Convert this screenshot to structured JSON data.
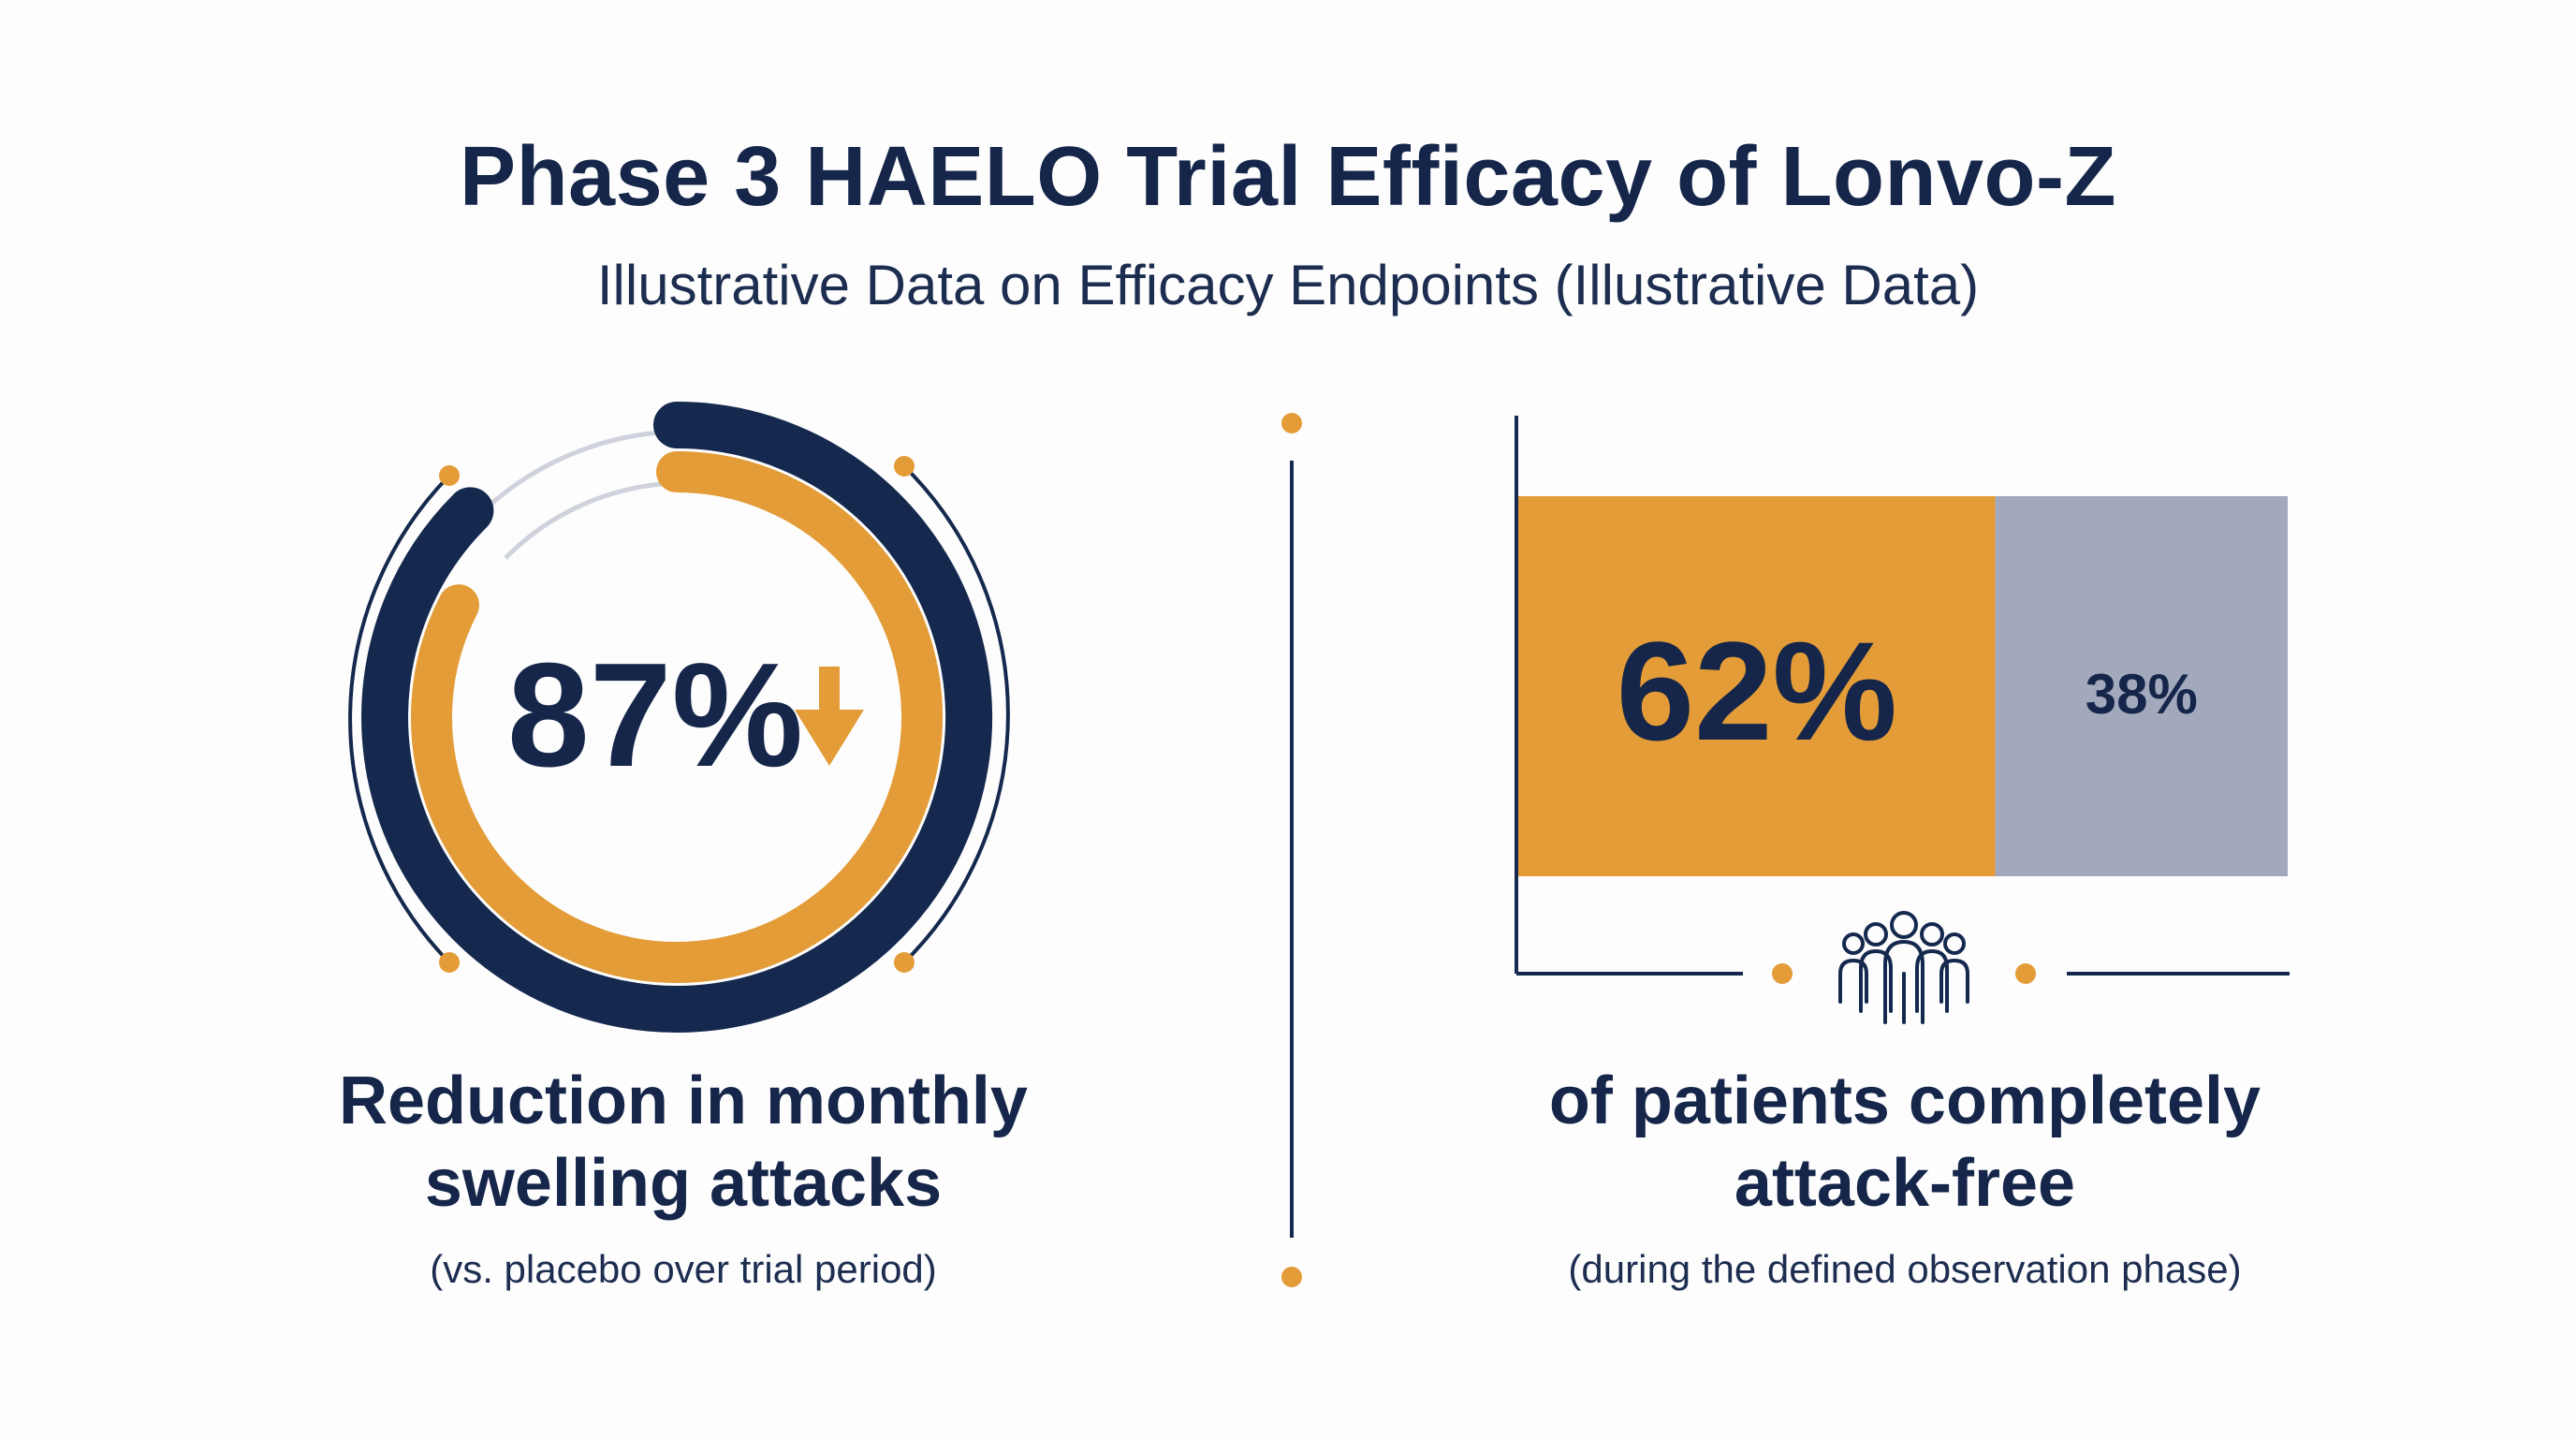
{
  "title": "Phase 3 HAELO Trial Efficacy of Lonvo-Z",
  "subtitle": "Illustrative Data on Efficacy Endpoints (Illustrative Data)",
  "colors": {
    "navy": "#15294f",
    "orange": "#e39c37",
    "gray": "#a3a9bd",
    "thin_gray": "#cfd2dc"
  },
  "chart_data": [
    {
      "type": "donut",
      "value": 87,
      "value_label": "87%",
      "direction_icon": "arrow-down-icon",
      "caption_line1": "Reduction in monthly",
      "caption_line2": "swelling attacks",
      "note": "(vs. placebo over trial period)"
    },
    {
      "type": "bar",
      "stacked": true,
      "orientation": "horizontal",
      "segments": [
        {
          "value": 62,
          "label": "62%",
          "color": "#e39c37"
        },
        {
          "value": 38,
          "label": "38%",
          "color": "#a3a9bd"
        }
      ],
      "icon": "people-group-icon",
      "caption_line1": "of patients completely",
      "caption_line2": "attack-free",
      "note": "(during the defined observation phase)"
    }
  ]
}
